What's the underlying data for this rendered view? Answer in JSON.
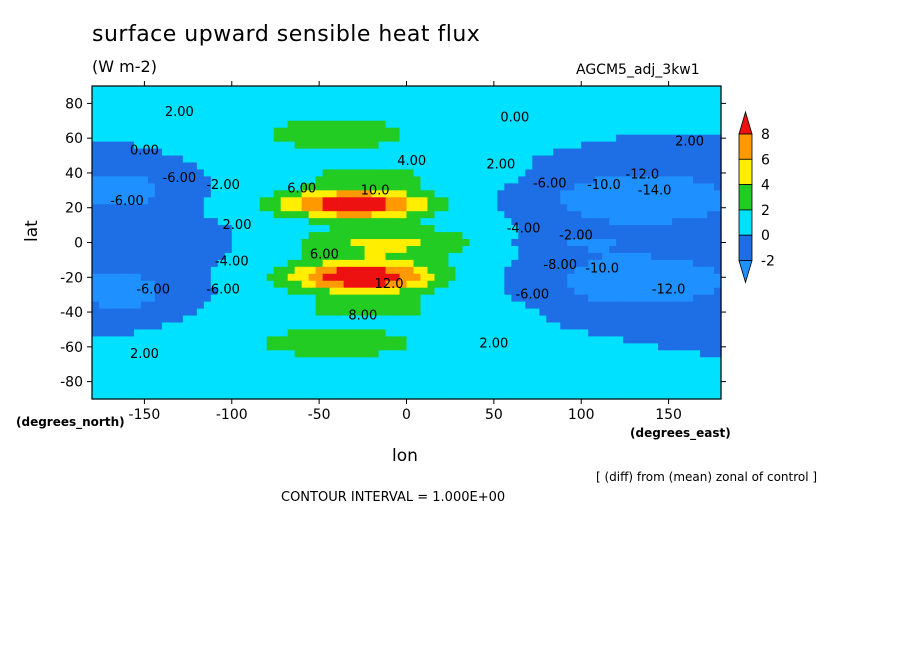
{
  "header": {
    "title": "surface upward sensible heat flux",
    "units": "(W m-2)",
    "run_id": "AGCM5_adj_3kw1"
  },
  "footer": {
    "note": "[ (diff) from (mean) zonal of control ]",
    "contour_interval": "CONTOUR INTERVAL = 1.000E+00"
  },
  "chart_data": {
    "type": "heatmap",
    "title": "surface upward sensible heat flux",
    "xlabel": "lon",
    "ylabel": "lat",
    "x_unit_label": "(degrees_east)",
    "y_unit_label": "(degrees_north)",
    "xlim": [
      -180,
      180
    ],
    "ylim": [
      -90,
      90
    ],
    "x_ticks": [
      -150,
      -100,
      -50,
      0,
      50,
      100,
      150
    ],
    "y_ticks": [
      80,
      60,
      40,
      20,
      0,
      -20,
      -40,
      -60,
      -80
    ],
    "colorbar": {
      "levels": [
        -2,
        0,
        2,
        4,
        6,
        8
      ],
      "colors": [
        "#1e90ff",
        "#1e6fe6",
        "#00e0ff",
        "#22cc22",
        "#ffee00",
        "#ff9900",
        "#ee1111"
      ]
    },
    "contour_labels": [
      {
        "text": "2.00",
        "lon": -130,
        "lat": 75
      },
      {
        "text": "0.00",
        "lon": 62,
        "lat": 72
      },
      {
        "text": "2.00",
        "lon": 162,
        "lat": 58
      },
      {
        "text": "0.00",
        "lon": -150,
        "lat": 53
      },
      {
        "text": "-6.00",
        "lon": -130,
        "lat": 37
      },
      {
        "text": "-2.00",
        "lon": -105,
        "lat": 33
      },
      {
        "text": "-6.00",
        "lon": -160,
        "lat": 24
      },
      {
        "text": "4.00",
        "lon": 3,
        "lat": 47
      },
      {
        "text": "2.00",
        "lon": 54,
        "lat": 45
      },
      {
        "text": "6.00",
        "lon": -60,
        "lat": 31
      },
      {
        "text": "10.0",
        "lon": -18,
        "lat": 30
      },
      {
        "text": "-6.00",
        "lon": 82,
        "lat": 34
      },
      {
        "text": "-10.0",
        "lon": 113,
        "lat": 33
      },
      {
        "text": "-12.0",
        "lon": 135,
        "lat": 39
      },
      {
        "text": "-14.0",
        "lon": 142,
        "lat": 30
      },
      {
        "text": "-4.00",
        "lon": 67,
        "lat": 8
      },
      {
        "text": "-2.00",
        "lon": 97,
        "lat": 4
      },
      {
        "text": "2.00",
        "lon": -97,
        "lat": 10
      },
      {
        "text": "-4.00",
        "lon": -100,
        "lat": -11
      },
      {
        "text": "6.00",
        "lon": -47,
        "lat": -7
      },
      {
        "text": "12.0",
        "lon": -10,
        "lat": -24
      },
      {
        "text": "-8.00",
        "lon": 88,
        "lat": -13
      },
      {
        "text": "-10.0",
        "lon": 112,
        "lat": -15
      },
      {
        "text": "-12.0",
        "lon": 150,
        "lat": -27
      },
      {
        "text": "-6.00",
        "lon": -145,
        "lat": -27
      },
      {
        "text": "-6.00",
        "lon": -105,
        "lat": -27
      },
      {
        "text": "8.00",
        "lon": -25,
        "lat": -42
      },
      {
        "text": "-6.00",
        "lon": 72,
        "lat": -30
      },
      {
        "text": "2.00",
        "lon": 50,
        "lat": -58
      },
      {
        "text": "2.00",
        "lon": -150,
        "lat": -64
      }
    ]
  }
}
